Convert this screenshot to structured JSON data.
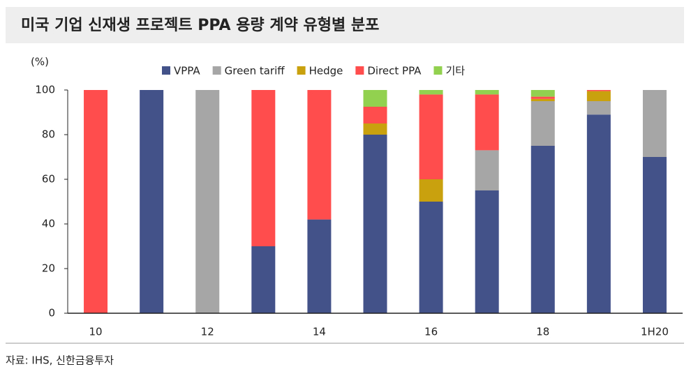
{
  "chart_data": {
    "type": "stacked-bar",
    "title": "미국 기업 신재생 프로젝트 PPA 용량 계약 유형별 분포",
    "y_label": "(%)",
    "source": "자료: IHS, 신한금융투자",
    "categories": [
      "10",
      null,
      "12",
      null,
      "14",
      null,
      "16",
      null,
      "18",
      null,
      "1H20"
    ],
    "series": [
      {
        "name": "VPPA",
        "color": "#44528a",
        "values": [
          0,
          100,
          0,
          30,
          42,
          80,
          50,
          55,
          75,
          89,
          70
        ]
      },
      {
        "name": "Green tariff",
        "color": "#a6a6a6",
        "values": [
          0,
          0,
          100,
          0,
          0,
          0,
          0,
          18,
          20,
          6,
          30
        ]
      },
      {
        "name": "Hedge",
        "color": "#c9a00e",
        "values": [
          0,
          0,
          0,
          0,
          0,
          5,
          10,
          0,
          1,
          4.5,
          0
        ]
      },
      {
        "name": "Direct PPA",
        "color": "#ff4d4d",
        "values": [
          100,
          0,
          0,
          70,
          58,
          7.5,
          38,
          25,
          1,
          0.5,
          0
        ]
      },
      {
        "name": "기타",
        "color": "#92d050",
        "values": [
          0,
          0,
          0,
          0,
          0,
          7.5,
          2,
          2,
          3,
          0,
          0
        ]
      }
    ],
    "ylim": [
      0,
      100
    ],
    "yticks": [
      0,
      20,
      40,
      60,
      80,
      100
    ]
  }
}
